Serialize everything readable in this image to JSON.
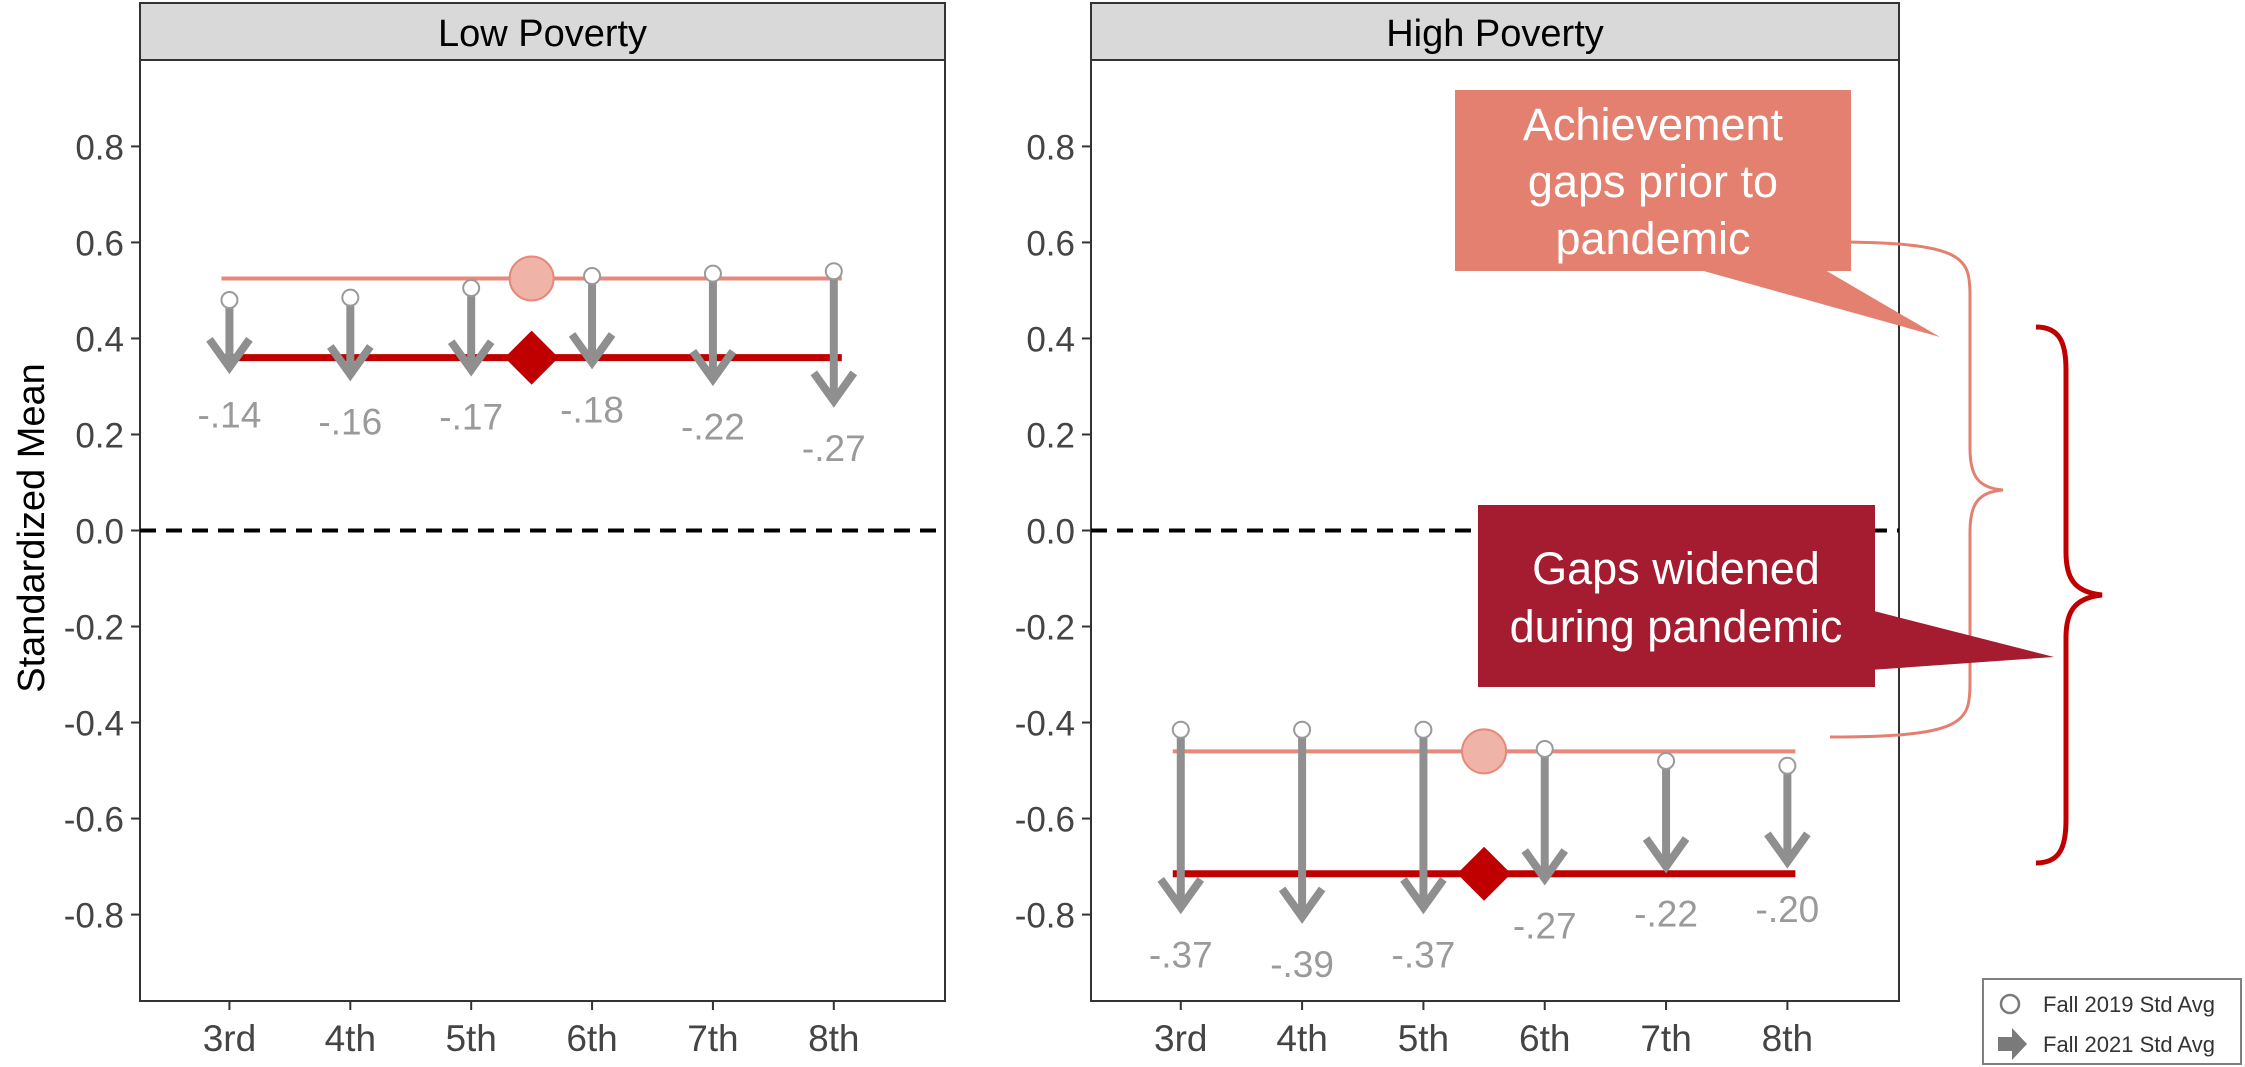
{
  "chart_data": {
    "type": "scatter",
    "ylabel": "Standardized Mean",
    "ylim": [
      -0.98,
      0.98
    ],
    "yticks": [
      0.8,
      0.6,
      0.4,
      0.2,
      0.0,
      -0.2,
      -0.4,
      -0.6,
      -0.8
    ],
    "ytick_labels": [
      "0.8",
      "0.6",
      "0.4",
      "0.2",
      "0.0",
      "-0.2",
      "-0.4",
      "-0.6",
      "-0.8"
    ],
    "reference_line": {
      "y": 0.0,
      "style": "dashed"
    },
    "grid": false,
    "colors": {
      "fall2019_line": "#E8887A",
      "fall2019_mean": "#F0B3A8",
      "fall2021_line": "#C00000",
      "arrow": "#8F8F8F",
      "change_label": "#9A9A9A",
      "panel_header": "#D9D9D9"
    },
    "panels": [
      {
        "title": "Low Poverty",
        "categories": [
          "3rd",
          "4th",
          "5th",
          "6th",
          "7th",
          "8th"
        ],
        "fall2019": [
          0.48,
          0.485,
          0.505,
          0.53,
          0.535,
          0.54
        ],
        "fall2021": [
          0.34,
          0.325,
          0.335,
          0.35,
          0.315,
          0.27
        ],
        "changes": [
          "-.14",
          "-.16",
          "-.17",
          "-.18",
          "-.22",
          "-.27"
        ],
        "fall2019_mean": 0.525,
        "fall2021_mean": 0.36
      },
      {
        "title": "High Poverty",
        "categories": [
          "3rd",
          "4th",
          "5th",
          "6th",
          "7th",
          "8th"
        ],
        "fall2019": [
          -0.415,
          -0.415,
          -0.415,
          -0.455,
          -0.48,
          -0.49
        ],
        "fall2021": [
          -0.785,
          -0.805,
          -0.785,
          -0.725,
          -0.7,
          -0.69
        ],
        "changes": [
          "-.37",
          "-.39",
          "-.37",
          "-.27",
          "-.22",
          "-.20"
        ],
        "fall2019_mean": -0.46,
        "fall2021_mean": -0.715
      }
    ],
    "annotations": [
      {
        "text_lines": [
          "Achievement",
          "gaps prior to",
          "pandemic"
        ],
        "color": "#E4806F",
        "text_color": "#ffffff"
      },
      {
        "text_lines": [
          "Gaps widened",
          "during pandemic"
        ],
        "color": "#A51C30",
        "text_color": "#ffffff"
      }
    ],
    "legend": {
      "position": "bottom-right",
      "entries": [
        {
          "label": "Fall 2019 Std Avg",
          "marker": "open-circle"
        },
        {
          "label": "Fall 2021 Std Avg",
          "marker": "arrow-right-icon"
        }
      ]
    }
  }
}
